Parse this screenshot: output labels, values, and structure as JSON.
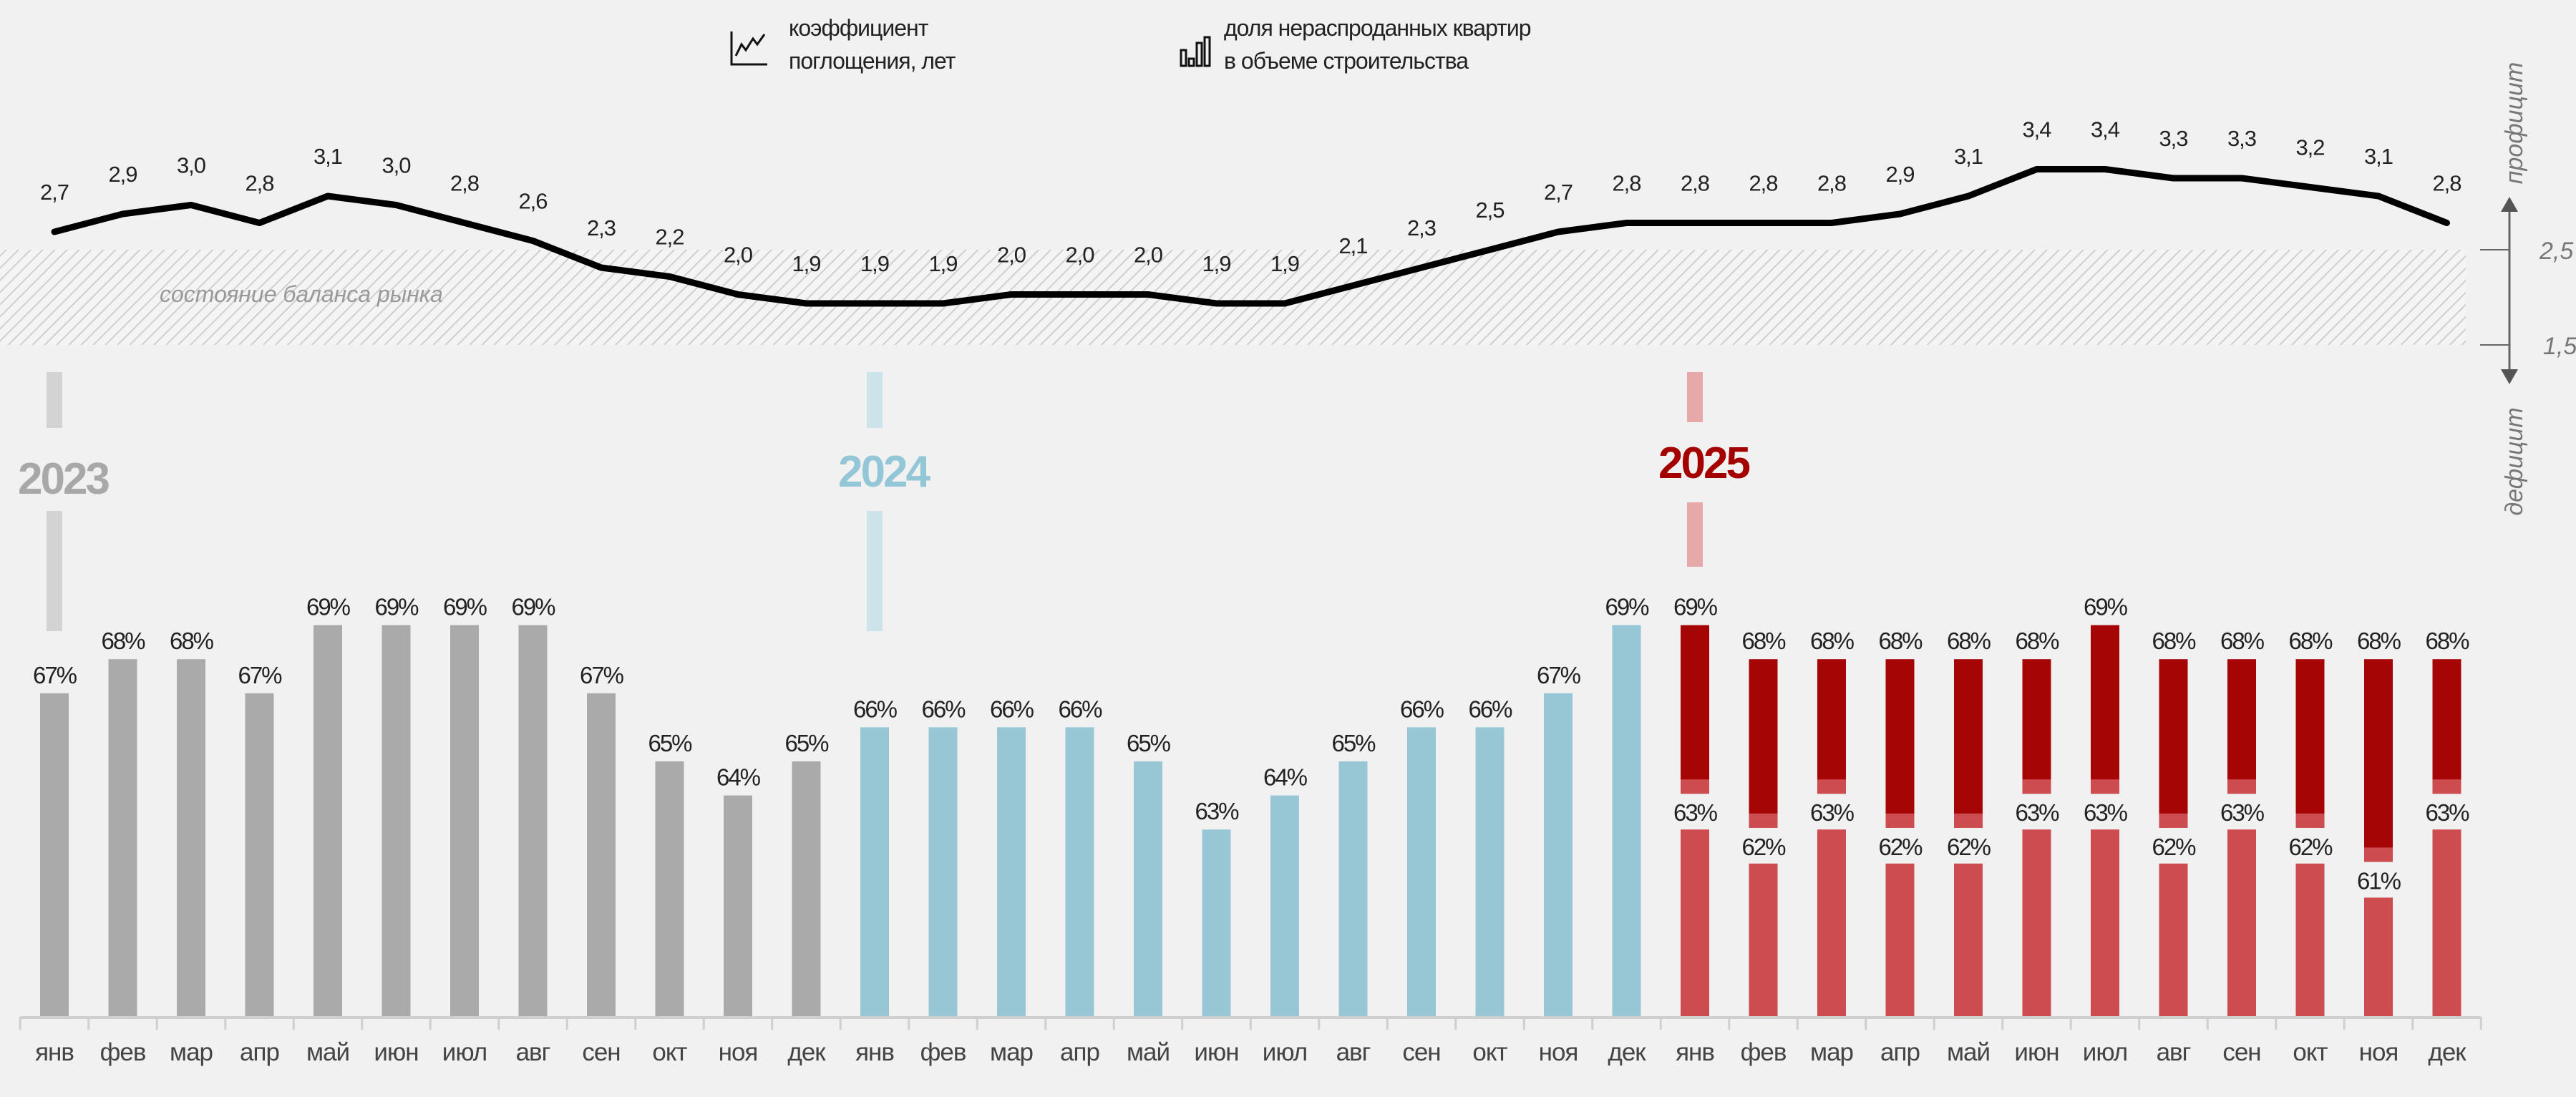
{
  "legend": {
    "line_label": [
      "коэффициент",
      "поглощения, лет"
    ],
    "bar_label": [
      "доля нераспроданных квартир",
      "в объеме строительства"
    ],
    "line_icon": "line-chart-icon",
    "bar_icon": "bar-chart-icon"
  },
  "right_axis": {
    "top_label": "профицит",
    "bottom_label": "дефицит",
    "ticks": [
      "2,5",
      "1,5"
    ]
  },
  "band_label": "состояние баланса рынка",
  "years": [
    "2023",
    "2024",
    "2025"
  ],
  "colors": {
    "y2023": "#aaaaaa",
    "y2024": "#97c7d5",
    "y2025_low": "#cc4c50",
    "y2025_high": "#a60505",
    "y2023_text": "#a8a8a8",
    "y2024_text": "#93c6d6",
    "y2025_text": "#a50000",
    "y2023_marker": "#d3d3d3",
    "y2024_marker": "#cde3ea",
    "y2025_marker": "#e6a9aa",
    "line": "#000000"
  },
  "chart_data": {
    "type": "bar+line",
    "months": [
      "янв",
      "фев",
      "мар",
      "апр",
      "май",
      "июн",
      "июл",
      "авг",
      "сен",
      "окт",
      "ноя",
      "дек",
      "янв",
      "фев",
      "мар",
      "апр",
      "май",
      "июн",
      "июл",
      "авг",
      "сен",
      "окт",
      "ноя",
      "дек",
      "янв",
      "фев",
      "мар",
      "апр",
      "май",
      "июн",
      "июл",
      "авг",
      "сен",
      "окт",
      "ноя",
      "дек"
    ],
    "line_series": {
      "name": "коэффициент поглощения, лет",
      "values": [
        2.7,
        2.9,
        3.0,
        2.8,
        3.1,
        3.0,
        2.8,
        2.6,
        2.3,
        2.2,
        2.0,
        1.9,
        1.9,
        1.9,
        2.0,
        2.0,
        2.0,
        1.9,
        1.9,
        2.1,
        2.3,
        2.5,
        2.7,
        2.8,
        2.8,
        2.8,
        2.8,
        2.9,
        3.1,
        3.4,
        3.4,
        3.3,
        3.3,
        3.2,
        3.1,
        2.8
      ],
      "labels": [
        "2,7",
        "2,9",
        "3,0",
        "2,8",
        "3,1",
        "3,0",
        "2,8",
        "2,6",
        "2,3",
        "2,2",
        "2,0",
        "1,9",
        "1,9",
        "1,9",
        "2,0",
        "2,0",
        "2,0",
        "1,9",
        "1,9",
        "2,1",
        "2,3",
        "2,5",
        "2,7",
        "2,8",
        "2,8",
        "2,8",
        "2,8",
        "2,9",
        "3,1",
        "3,4",
        "3,4",
        "3,3",
        "3,3",
        "3,2",
        "3,1",
        "2,8"
      ]
    },
    "balance_band": [
      1.5,
      2.5
    ],
    "bar_series": {
      "name": "доля нераспроданных квартир в объеме строительства, %",
      "values": [
        67,
        68,
        68,
        67,
        69,
        69,
        69,
        69,
        67,
        65,
        64,
        65,
        66,
        66,
        66,
        66,
        65,
        63,
        64,
        65,
        66,
        66,
        67,
        69,
        69,
        68,
        68,
        68,
        68,
        68,
        69,
        68,
        68,
        68,
        68,
        68
      ],
      "labels": [
        "67%",
        "68%",
        "68%",
        "67%",
        "69%",
        "69%",
        "69%",
        "69%",
        "67%",
        "65%",
        "64%",
        "65%",
        "66%",
        "66%",
        "66%",
        "66%",
        "65%",
        "63%",
        "64%",
        "65%",
        "66%",
        "66%",
        "67%",
        "69%",
        "69%",
        "68%",
        "68%",
        "68%",
        "68%",
        "68%",
        "69%",
        "68%",
        "68%",
        "68%",
        "68%",
        "68%"
      ],
      "values_2025_lower": [
        63,
        62,
        63,
        62,
        62,
        63,
        63,
        62,
        63,
        62,
        61,
        63
      ],
      "labels_2025_lower": [
        "63%",
        "62%",
        "63%",
        "62%",
        "62%",
        "63%",
        "63%",
        "62%",
        "63%",
        "62%",
        "61%",
        "63%"
      ]
    },
    "bar_ymin": 57.5
  }
}
